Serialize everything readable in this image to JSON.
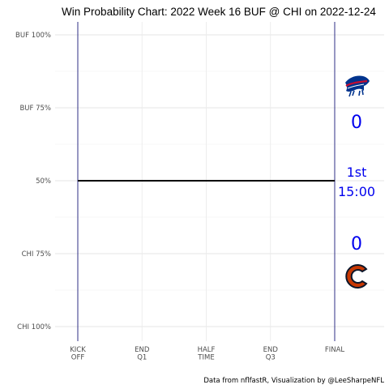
{
  "chart_data": {
    "type": "line",
    "title": "Win Probability Chart: 2022 Week 16 BUF @ CHI on 2022-12-24",
    "xlabel": "",
    "ylabel": "",
    "x_ticks": [
      {
        "value": 0,
        "label": [
          "KICK",
          "OFF"
        ]
      },
      {
        "value": 15,
        "label": [
          "END",
          "Q1"
        ]
      },
      {
        "value": 30,
        "label": [
          "HALF",
          "TIME"
        ]
      },
      {
        "value": 45,
        "label": [
          "END",
          "Q3"
        ]
      },
      {
        "value": 60,
        "label": [
          "FINAL"
        ]
      }
    ],
    "xlim": [
      0,
      60
    ],
    "y_ticks": [
      {
        "value": 1.0,
        "label": "BUF 100%"
      },
      {
        "value": 0.75,
        "label": "BUF 75%"
      },
      {
        "value": 0.5,
        "label": "50%"
      },
      {
        "value": 0.25,
        "label": "CHI 75%"
      },
      {
        "value": 0.0,
        "label": "CHI 100%"
      }
    ],
    "ylim": [
      0,
      1
    ],
    "grid": true,
    "series": [
      {
        "color": "#000000",
        "x": [
          0,
          60
        ],
        "y": [
          0.5,
          0.5
        ]
      }
    ],
    "vlines": [
      0,
      60
    ],
    "vline_color": "#1a1a7a"
  },
  "scoreboard": {
    "away_team": "BUF",
    "home_team": "CHI",
    "away_score": "0",
    "home_score": "0",
    "quarter": "1st",
    "clock": "15:00",
    "text_color": "#0000ee",
    "away_logo_colors": {
      "primary": "#00338d",
      "accent": "#c60c30"
    },
    "home_logo_colors": {
      "primary": "#0b162a",
      "accent": "#c83803"
    }
  },
  "caption": "Data from nflfastR, Visualization by @LeeSharpeNFL"
}
